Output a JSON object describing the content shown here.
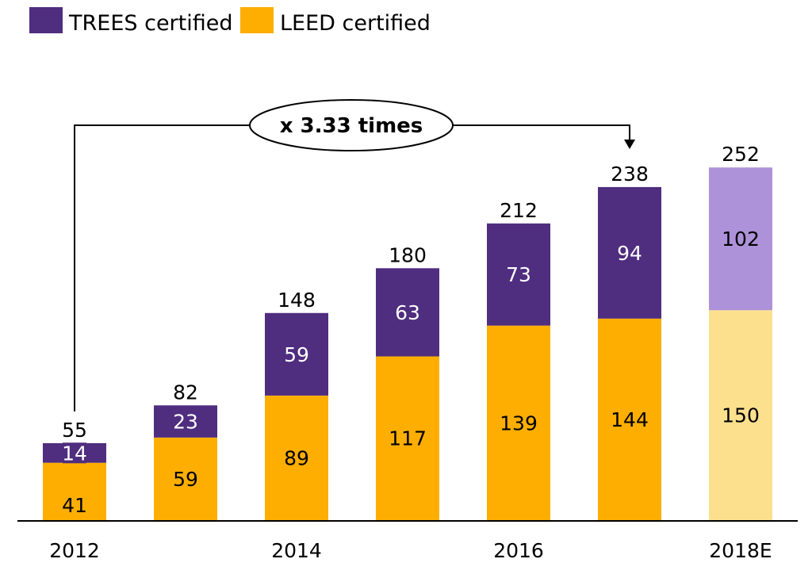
{
  "chart_data": {
    "type": "bar",
    "stacked": true,
    "categories": [
      "2012",
      "2013",
      "2014",
      "2015",
      "2016",
      "2017",
      "2018E"
    ],
    "tick_labels": [
      "2012",
      "",
      "2014",
      "",
      "2016",
      "",
      "2018E"
    ],
    "series": [
      {
        "name": "LEED certified",
        "color": "#FDAE00",
        "estimate_color": "#FDE08E",
        "values": [
          41,
          59,
          89,
          117,
          139,
          144,
          150
        ]
      },
      {
        "name": "TREES certified",
        "color": "#4F2D7F",
        "estimate_color": "#AE92D9",
        "values": [
          14,
          23,
          59,
          63,
          73,
          94,
          102
        ]
      }
    ],
    "totals": [
      55,
      82,
      148,
      180,
      212,
      238,
      252
    ],
    "estimated_categories": [
      "2018E"
    ],
    "legend": {
      "position": "top-left",
      "entries": [
        "TREES certified",
        "LEED certified"
      ]
    },
    "annotation": {
      "text": "x 3.33 times",
      "from_category": "2012",
      "to_category": "2017"
    },
    "title": "",
    "xlabel": "",
    "ylabel": "",
    "ylim": [
      0,
      252
    ],
    "grid": false
  }
}
